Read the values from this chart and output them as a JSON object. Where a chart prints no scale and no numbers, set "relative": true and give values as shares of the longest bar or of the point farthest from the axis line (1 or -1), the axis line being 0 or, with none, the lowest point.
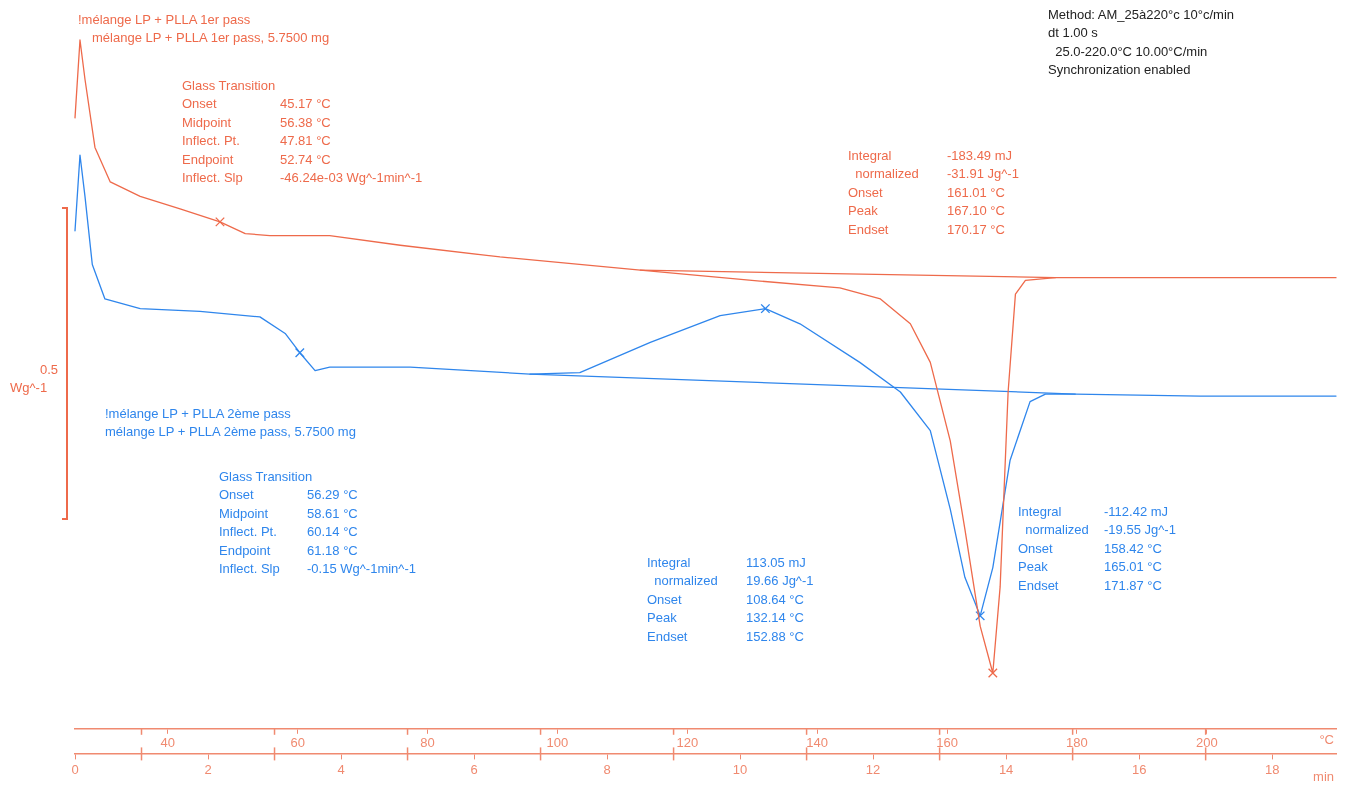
{
  "chart_data": {
    "type": "line",
    "relative": true,
    "xlabel": "min",
    "x2label": "°C",
    "ylabel": "Wg^-1",
    "grid": false,
    "legend": false,
    "marker": "none",
    "xlim": [
      0,
      18.96
    ],
    "xticks": [
      0,
      {
        "value": 1,
        "label": null
      },
      2,
      {
        "value": 3,
        "label": null
      },
      4,
      {
        "value": 5,
        "label": null
      },
      6,
      {
        "value": 7,
        "label": null
      },
      8,
      {
        "value": 9,
        "label": null
      },
      10,
      {
        "value": 11,
        "label": null
      },
      12,
      {
        "value": 13,
        "label": null
      },
      14,
      {
        "value": 15,
        "label": null
      },
      16,
      {
        "value": 17,
        "label": null
      },
      18
    ],
    "x2lim": [
      25.7,
      219.9
    ],
    "x2ticks": [
      40,
      60,
      80,
      100,
      120,
      140,
      160,
      180,
      200
    ],
    "series": [
      {
        "name": "mélange LP + PLLA 1er pass, 5.7500 mg",
        "color": "#ee6a4b",
        "x": [
          0,
          0.075,
          0.15,
          0.3,
          0.53,
          0.98,
          1.58,
          2.18,
          2.56,
          2.93,
          3.83,
          4.89,
          6.39,
          8.5,
          10.3,
          11.5,
          12.11,
          12.56,
          12.86,
          13.16,
          13.38,
          13.61,
          13.8,
          13.91,
          14.03,
          14.14,
          14.29,
          14.74,
          16.92,
          18.96
        ],
        "values": [
          0.887,
          1,
          0.943,
          0.844,
          0.794,
          0.773,
          0.755,
          0.736,
          0.719,
          0.716,
          0.716,
          0.702,
          0.685,
          0.666,
          0.65,
          0.64,
          0.624,
          0.588,
          0.532,
          0.418,
          0.29,
          0.149,
          0.081,
          0.206,
          0.489,
          0.631,
          0.651,
          0.655,
          0.655,
          0.655
        ]
      },
      {
        "name": "mélange LP + PLLA 2ème pass, 5.7500 mg",
        "color": "#2f86ec",
        "x": [
          0,
          0.075,
          0.15,
          0.26,
          0.45,
          0.98,
          1.88,
          2.78,
          3.16,
          3.38,
          3.61,
          3.83,
          5.04,
          6.84,
          7.59,
          8.65,
          9.7,
          10.38,
          10.9,
          11.8,
          12.41,
          12.86,
          13.16,
          13.38,
          13.61,
          13.8,
          14.06,
          14.36,
          14.59,
          15.04,
          16.92,
          18.96
        ],
        "values": [
          0.723,
          0.833,
          0.773,
          0.674,
          0.624,
          0.61,
          0.606,
          0.598,
          0.574,
          0.546,
          0.52,
          0.525,
          0.525,
          0.515,
          0.517,
          0.561,
          0.6,
          0.61,
          0.588,
          0.532,
          0.489,
          0.433,
          0.319,
          0.22,
          0.164,
          0.234,
          0.39,
          0.475,
          0.486,
          0.486,
          0.483,
          0.483
        ]
      },
      {
        "color": "#ee6a4b",
        "x": [
          8.5,
          14.74
        ],
        "values": [
          0.666,
          0.655
        ]
      },
      {
        "color": "#2f86ec",
        "x": [
          6.84,
          15.04
        ],
        "values": [
          0.515,
          0.486
        ]
      },
      {
        "type": "scatter",
        "marker": "cross",
        "color": "#ee6a4b",
        "x": [
          2.18,
          13.8
        ],
        "values": [
          0.736,
          0.081
        ]
      },
      {
        "type": "scatter",
        "marker": "cross",
        "color": "#2f86ec",
        "x": [
          3.38,
          10.38,
          13.61
        ],
        "values": [
          0.546,
          0.61,
          0.164
        ]
      }
    ],
    "annotations": [
      "!mélange LP + PLLA 1er pass",
      "Glass Transition",
      "Onset\t45.17 °C",
      "Midpoint\t56.38 °C",
      "Inflect. Pt.\t47.81 °C",
      "Endpoint\t52.74 °C",
      "Inflect. Slp\t-46.24e-03 Wg^-1min^-1",
      "Integral\t-183.49 mJ",
      "  normalized\t-31.91 Jg^-1",
      "Onset\t161.01 °C",
      "Peak\t167.10 °C",
      "Endset\t170.17 °C",
      "!mélange LP + PLLA 2ème pass",
      "Glass Transition",
      "Onset\t56.29 °C",
      "Midpoint\t58.61 °C",
      "Inflect. Pt.\t60.14 °C",
      "Endpoint\t61.18 °C",
      "Inflect. Slp\t-0.15 Wg^-1min^-1",
      "Integral\t113.05 mJ",
      "  normalized\t19.66 Jg^-1",
      "Onset\t108.64 °C",
      "Peak\t132.14 °C",
      "Endset\t152.88 °C",
      "Integral\t-112.42 mJ",
      "  normalized\t-19.55 Jg^-1",
      "Onset\t158.42 °C",
      "Peak\t165.01 °C",
      "Endset\t171.87 °C",
      "Method: AM_25à220°c 10°c/min",
      "dt 1.00 s",
      "  25.0-220.0°C 10.00°C/min",
      "Synchronization enabled",
      "0.5"
    ]
  }
}
